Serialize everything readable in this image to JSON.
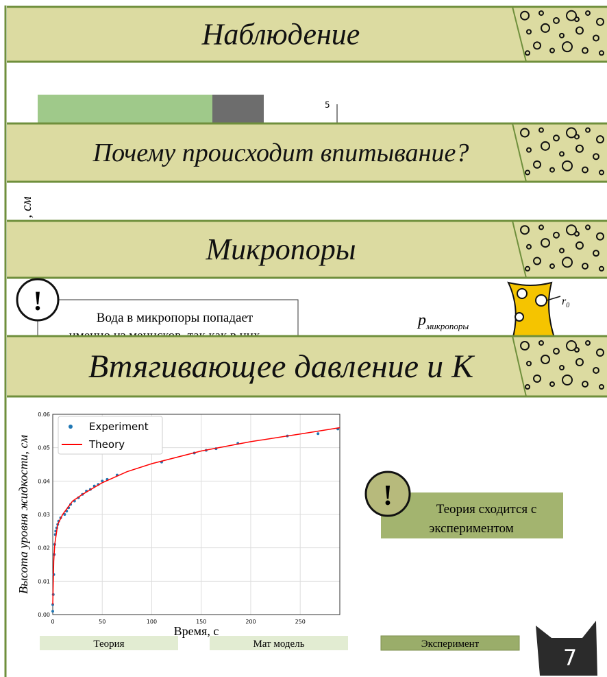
{
  "slides": [
    {
      "title": "Наблюдение",
      "tick": "5"
    },
    {
      "title": "Почему происходит впитывание?",
      "axis_fragment": ", см"
    },
    {
      "title": "Микропоры",
      "note_lines": [
        "Вода в микропоры попадает",
        "именно из менисков, так как в них"
      ],
      "pressure_symbol": "p",
      "pressure_subscript": "микропоры",
      "radius_symbol": "r",
      "radius_subscript": "0",
      "mark": "!"
    },
    {
      "title": "Втягивающее давление и K"
    }
  ],
  "chart_data": {
    "type": "scatter",
    "xlabel": "Время, с",
    "ylabel": "Высота уровня жидкости, см",
    "xlim": [
      0,
      290
    ],
    "ylim": [
      0,
      0.06
    ],
    "xticks": [
      0,
      50,
      100,
      150,
      200,
      250
    ],
    "yticks": [
      {
        "value": 0,
        "label": "0.00"
      },
      0.01,
      0.02,
      0.03,
      0.04,
      0.05,
      0.06
    ],
    "grid": true,
    "legend": "upper left",
    "series": [
      {
        "name": "Experiment",
        "type": "scatter",
        "color": "#1f77b4",
        "x": [
          0,
          0,
          0.5,
          1,
          1.5,
          2,
          2.5,
          3,
          4,
          5,
          6,
          8,
          12,
          14,
          16,
          18,
          22,
          26,
          30,
          34,
          38,
          42,
          46,
          50,
          55,
          65,
          110,
          143,
          155,
          165,
          187,
          237,
          268,
          288
        ],
        "values": [
          0.001,
          0.003,
          0.006,
          0.012,
          0.018,
          0.021,
          0.024,
          0.025,
          0.026,
          0.027,
          0.028,
          0.029,
          0.03,
          0.031,
          0.032,
          0.033,
          0.034,
          0.035,
          0.036,
          0.037,
          0.0375,
          0.0385,
          0.039,
          0.04,
          0.0405,
          0.0418,
          0.0457,
          0.0484,
          0.0492,
          0.0497,
          0.0513,
          0.0535,
          0.0542,
          0.0556
        ]
      },
      {
        "name": "Theory",
        "type": "line",
        "color": "#ff0000",
        "x": [
          0,
          1,
          2,
          5,
          10,
          20,
          30,
          50,
          75,
          100,
          150,
          200,
          250,
          290
        ],
        "values": [
          0.003,
          0.016,
          0.021,
          0.027,
          0.03,
          0.034,
          0.036,
          0.0395,
          0.0428,
          0.0452,
          0.049,
          0.0518,
          0.0541,
          0.056
        ]
      }
    ]
  },
  "callout": {
    "mark": "!",
    "lines": [
      "Теория сходится с",
      "экспериментом"
    ]
  },
  "nav": [
    "Теория",
    "Мат модель",
    "Эксперимент"
  ],
  "page_number": "7"
}
